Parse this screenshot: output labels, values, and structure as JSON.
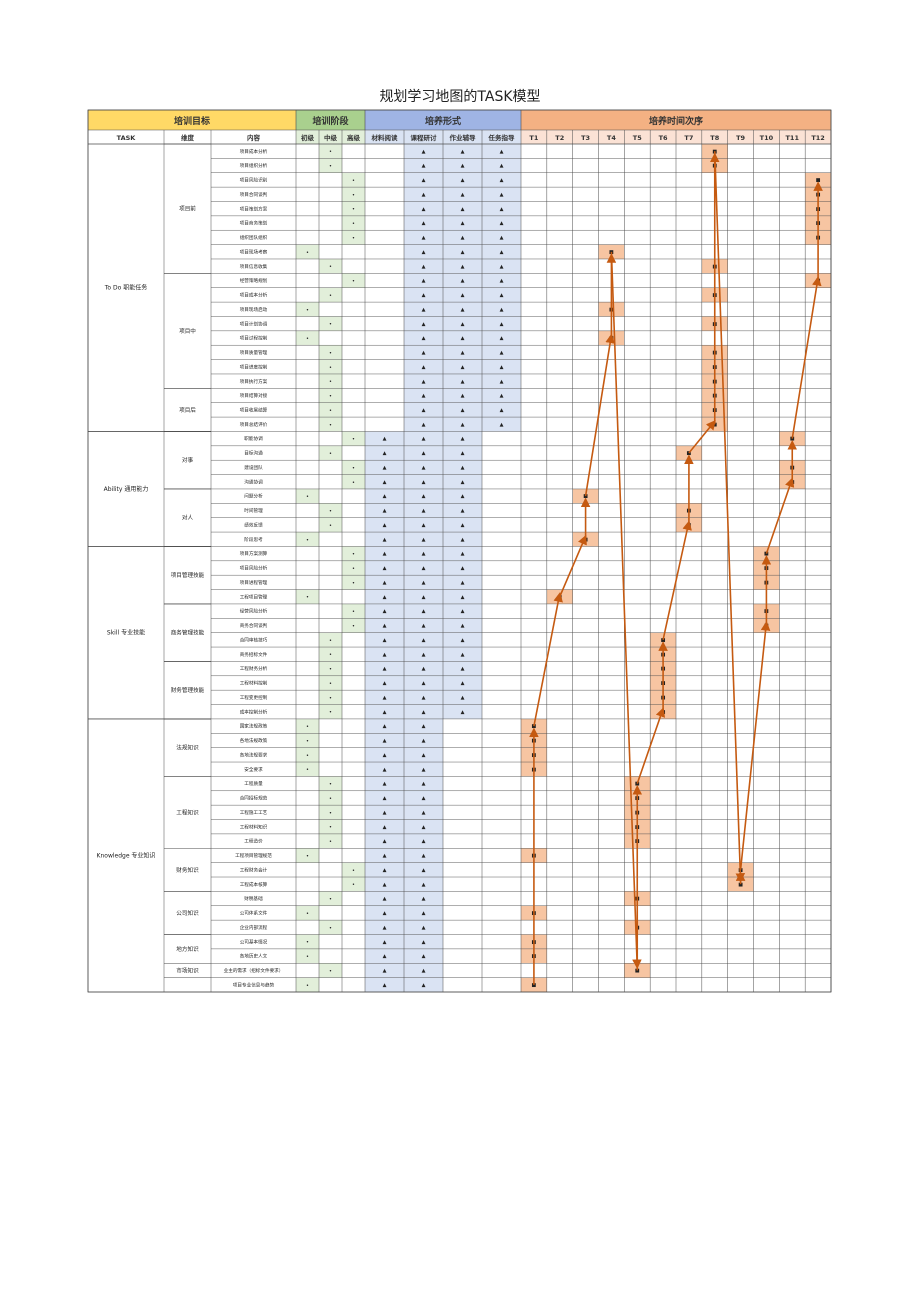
{
  "title": "规划学习地图的TASK模型",
  "headers": {
    "group1": "培训目标",
    "group2": "培训阶段",
    "group3": "培养形式",
    "group4": "培养时间次序",
    "task": "TASK",
    "dim": "维度",
    "content": "内容",
    "stages": [
      "初级",
      "中级",
      "高级"
    ],
    "forms": [
      "材料阅读",
      "课程研讨",
      "作业辅导",
      "任务指导"
    ],
    "times": [
      "T1",
      "T2",
      "T3",
      "T4",
      "T5",
      "T6",
      "T7",
      "T8",
      "T9",
      "T10",
      "T11",
      "T12"
    ]
  },
  "categories": [
    {
      "label": "To Do 职能任务",
      "start": 0,
      "count": 20
    },
    {
      "label": "Ability 通用能力",
      "start": 20,
      "count": 8
    },
    {
      "label": "Skill 专业技能",
      "start": 28,
      "count": 12
    },
    {
      "label": "Knowledge 专业知识",
      "start": 40,
      "count": 19
    }
  ],
  "subgroups": [
    {
      "label": "项目前",
      "start": 0,
      "count": 9
    },
    {
      "label": "项目中",
      "start": 9,
      "count": 8
    },
    {
      "label": "项目后",
      "start": 17,
      "count": 3
    },
    {
      "label": "对事",
      "start": 20,
      "count": 4
    },
    {
      "label": "对人",
      "start": 24,
      "count": 4
    },
    {
      "label": "项目管理技能",
      "start": 28,
      "count": 4
    },
    {
      "label": "商务管理技能",
      "start": 32,
      "count": 4
    },
    {
      "label": "财务管理技能",
      "start": 36,
      "count": 4
    },
    {
      "label": "法规知识",
      "start": 40,
      "count": 4
    },
    {
      "label": "工程知识",
      "start": 44,
      "count": 5
    },
    {
      "label": "财务知识",
      "start": 49,
      "count": 3
    },
    {
      "label": "公司知识",
      "start": 52,
      "count": 3
    },
    {
      "label": "地方知识",
      "start": 55,
      "count": 2
    },
    {
      "label": "市场知识",
      "start": 57,
      "count": 1
    }
  ],
  "rows": [
    {
      "content": "项目成本分析",
      "stage": 1,
      "forms": [
        1,
        2,
        3
      ],
      "t": 8
    },
    {
      "content": "项目组织分析",
      "stage": 1,
      "forms": [
        1,
        2,
        3
      ],
      "t": 8
    },
    {
      "content": "项目风险识别",
      "stage": 2,
      "forms": [
        1,
        2,
        3
      ],
      "t": 12
    },
    {
      "content": "项目合同谈判",
      "stage": 2,
      "forms": [
        1,
        2,
        3
      ],
      "t": 12
    },
    {
      "content": "项目策划方案",
      "stage": 2,
      "forms": [
        1,
        2,
        3
      ],
      "t": 12
    },
    {
      "content": "项目商务策划",
      "stage": 2,
      "forms": [
        1,
        2,
        3
      ],
      "t": 12
    },
    {
      "content": "组织团队组织",
      "stage": 2,
      "forms": [
        1,
        2,
        3
      ],
      "t": 12
    },
    {
      "content": "项目现场考察",
      "stage": 0,
      "forms": [
        1,
        2,
        3
      ],
      "t": 4
    },
    {
      "content": "项目信息收集",
      "stage": 1,
      "forms": [
        1,
        2,
        3
      ],
      "t": 8
    },
    {
      "content": "经营策略规划",
      "stage": 2,
      "forms": [
        1,
        2,
        3
      ],
      "t": 12
    },
    {
      "content": "项目成本分析",
      "stage": 1,
      "forms": [
        1,
        2,
        3
      ],
      "t": 8
    },
    {
      "content": "项目现场启动",
      "stage": 0,
      "forms": [
        1,
        2,
        3
      ],
      "t": 4
    },
    {
      "content": "项目计划协调",
      "stage": 1,
      "forms": [
        1,
        2,
        3
      ],
      "t": 8
    },
    {
      "content": "项目过程控制",
      "stage": 0,
      "forms": [
        1,
        2,
        3
      ],
      "t": 4
    },
    {
      "content": "项目质量管理",
      "stage": 1,
      "forms": [
        1,
        2,
        3
      ],
      "t": 8
    },
    {
      "content": "项目进度控制",
      "stage": 1,
      "forms": [
        1,
        2,
        3
      ],
      "t": 8
    },
    {
      "content": "项目执行方案",
      "stage": 1,
      "forms": [
        1,
        2,
        3
      ],
      "t": 8
    },
    {
      "content": "项目结算对接",
      "stage": 1,
      "forms": [
        1,
        2,
        3
      ],
      "t": 8
    },
    {
      "content": "项目收尾结算",
      "stage": 1,
      "forms": [
        1,
        2,
        3
      ],
      "t": 8
    },
    {
      "content": "项目总结评价",
      "stage": 1,
      "forms": [
        1,
        2,
        3
      ],
      "t": 8
    },
    {
      "content": "职能协调",
      "stage": 2,
      "forms": [
        0,
        1,
        2
      ],
      "t": 11
    },
    {
      "content": "目标沟通",
      "stage": 1,
      "forms": [
        0,
        1,
        2
      ],
      "t": 7
    },
    {
      "content": "建设团队",
      "stage": 2,
      "forms": [
        0,
        1,
        2
      ],
      "t": 11
    },
    {
      "content": "沟通协调",
      "stage": 2,
      "forms": [
        0,
        1,
        2
      ],
      "t": 11
    },
    {
      "content": "问题分析",
      "stage": 0,
      "forms": [
        0,
        1,
        2
      ],
      "t": 3
    },
    {
      "content": "时间管理",
      "stage": 1,
      "forms": [
        0,
        1,
        2
      ],
      "t": 7
    },
    {
      "content": "绩效反馈",
      "stage": 1,
      "forms": [
        0,
        1,
        2
      ],
      "t": 7
    },
    {
      "content": "阶段思考",
      "stage": 0,
      "forms": [
        0,
        1,
        2
      ],
      "t": 3
    },
    {
      "content": "项目方案测算",
      "stage": 2,
      "forms": [
        0,
        1,
        2
      ],
      "t": 10
    },
    {
      "content": "项目风险分析",
      "stage": 2,
      "forms": [
        0,
        1,
        2
      ],
      "t": 10
    },
    {
      "content": "项目进程管理",
      "stage": 2,
      "forms": [
        0,
        1,
        2
      ],
      "t": 10
    },
    {
      "content": "工程项目管理",
      "stage": 0,
      "forms": [
        0,
        1,
        2
      ],
      "t": 2
    },
    {
      "content": "经营风险分析",
      "stage": 2,
      "forms": [
        0,
        1,
        2
      ],
      "t": 10
    },
    {
      "content": "商务合同谈判",
      "stage": 2,
      "forms": [
        0,
        1,
        2
      ],
      "t": 10
    },
    {
      "content": "合同审核技巧",
      "stage": 1,
      "forms": [
        0,
        1,
        2
      ],
      "t": 6
    },
    {
      "content": "商务招标文件",
      "stage": 1,
      "forms": [
        0,
        1,
        2
      ],
      "t": 6
    },
    {
      "content": "工程财务分析",
      "stage": 1,
      "forms": [
        0,
        1,
        2
      ],
      "t": 6
    },
    {
      "content": "工程材料控制",
      "stage": 1,
      "forms": [
        0,
        1,
        2
      ],
      "t": 6
    },
    {
      "content": "工程变更控制",
      "stage": 1,
      "forms": [
        0,
        1,
        2
      ],
      "t": 6
    },
    {
      "content": "成本控制分析",
      "stage": 1,
      "forms": [
        0,
        1,
        2
      ],
      "t": 6
    },
    {
      "content": "国家法规政策",
      "stage": 0,
      "forms": [
        0,
        1
      ],
      "t": 1
    },
    {
      "content": "各地法规政策",
      "stage": 0,
      "forms": [
        0,
        1
      ],
      "t": 1
    },
    {
      "content": "各地法规要求",
      "stage": 0,
      "forms": [
        0,
        1
      ],
      "t": 1
    },
    {
      "content": "安全要求",
      "stage": 0,
      "forms": [
        0,
        1
      ],
      "t": 1
    },
    {
      "content": "工程质量",
      "stage": 1,
      "forms": [
        0,
        1
      ],
      "t": 5
    },
    {
      "content": "合同招标规范",
      "stage": 1,
      "forms": [
        0,
        1
      ],
      "t": 5
    },
    {
      "content": "工程施工工艺",
      "stage": 1,
      "forms": [
        0,
        1
      ],
      "t": 5
    },
    {
      "content": "工程材料知识",
      "stage": 1,
      "forms": [
        0,
        1
      ],
      "t": 5
    },
    {
      "content": "工程造价",
      "stage": 1,
      "forms": [
        0,
        1
      ],
      "t": 5
    },
    {
      "content": "工程项目管理规范",
      "stage": 0,
      "forms": [
        0,
        1
      ],
      "t": 1
    },
    {
      "content": "工程财务会计",
      "stage": 2,
      "forms": [
        0,
        1
      ],
      "t": 9
    },
    {
      "content": "工程成本核算",
      "stage": 2,
      "forms": [
        0,
        1
      ],
      "t": 9
    },
    {
      "content": "财税基础",
      "stage": 1,
      "forms": [
        0,
        1
      ],
      "t": 5
    },
    {
      "content": "公司体系文件",
      "stage": 0,
      "forms": [
        0,
        1
      ],
      "t": 1
    },
    {
      "content": "企业内部流程",
      "stage": 1,
      "forms": [
        0,
        1
      ],
      "t": 5
    },
    {
      "content": "公司基本情况",
      "stage": 0,
      "forms": [
        0,
        1
      ],
      "t": 1
    },
    {
      "content": "各地历史人文",
      "stage": 0,
      "forms": [
        0,
        1
      ],
      "t": 1
    },
    {
      "content": "业主的需求（招标文件要求）",
      "stage": 1,
      "forms": [
        0,
        1
      ],
      "t": 5
    },
    {
      "content": "项目专业信息与趋势",
      "stage": 0,
      "forms": [
        0,
        1
      ],
      "t": 1
    }
  ],
  "marks": {
    "stage": "•",
    "form": "▲",
    "time": "■"
  },
  "colors": {
    "target": "#ffd966",
    "stage": "#a9d08e",
    "form": "#9fb4e4",
    "time": "#f4b183",
    "stage_light": "#e2efda",
    "form_light": "#dae3f3",
    "time_light": "#fbe2d5",
    "arrow": "#c55a11",
    "grid": "#4a4a4a"
  }
}
